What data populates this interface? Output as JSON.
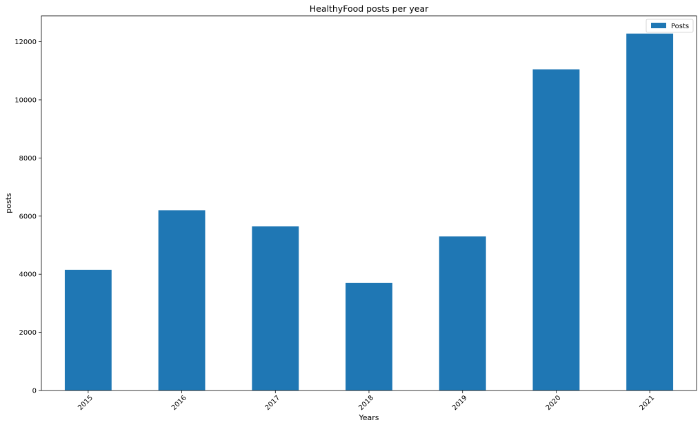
{
  "chart_data": {
    "type": "bar",
    "title": "HealthyFood posts per year",
    "xlabel": "Years",
    "ylabel": "posts",
    "categories": [
      "2015",
      "2016",
      "2017",
      "2018",
      "2019",
      "2020",
      "2021"
    ],
    "series": [
      {
        "name": "Posts",
        "values": [
          4150,
          6200,
          5650,
          3700,
          5300,
          11050,
          12280
        ],
        "color": "#1f77b4"
      }
    ],
    "ylim": [
      0,
      12890
    ],
    "yticks": [
      0,
      2000,
      4000,
      6000,
      8000,
      10000,
      12000
    ],
    "grid": false,
    "legend_position": "top-right"
  }
}
